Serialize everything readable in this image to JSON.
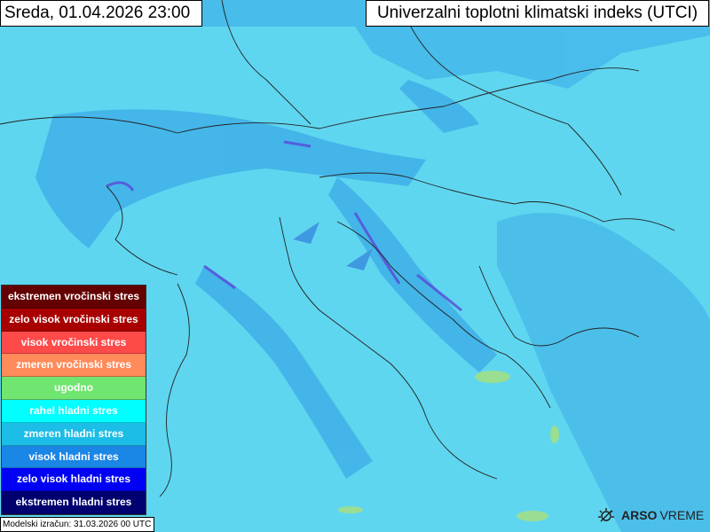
{
  "header": {
    "date": "Sreda, 01.04.2026 23:00",
    "title": "Univerzalni toplotni klimatski indeks (UTCI)"
  },
  "legend": [
    {
      "label": "ekstremen vročinski stres",
      "color": "#640000"
    },
    {
      "label": "zelo visok vročinski stres",
      "color": "#a80000"
    },
    {
      "label": "visok vročinski stres",
      "color": "#ff4a4a"
    },
    {
      "label": "zmeren vročinski stres",
      "color": "#ff8a5a"
    },
    {
      "label": "ugodno",
      "color": "#70e670"
    },
    {
      "label": "rahel hladni stres",
      "color": "#00ffff"
    },
    {
      "label": "zmeren hladni stres",
      "color": "#1cbde6"
    },
    {
      "label": "visok hladni stres",
      "color": "#1a86e6"
    },
    {
      "label": "zelo visok hladni stres",
      "color": "#0000f5"
    },
    {
      "label": "ekstremen hladni stres",
      "color": "#000070"
    }
  ],
  "footer": {
    "model_run": "Modelski izračun: 31.03.2026 00 UTC",
    "logo_bold": "ARSO",
    "logo_light": "VREME"
  }
}
